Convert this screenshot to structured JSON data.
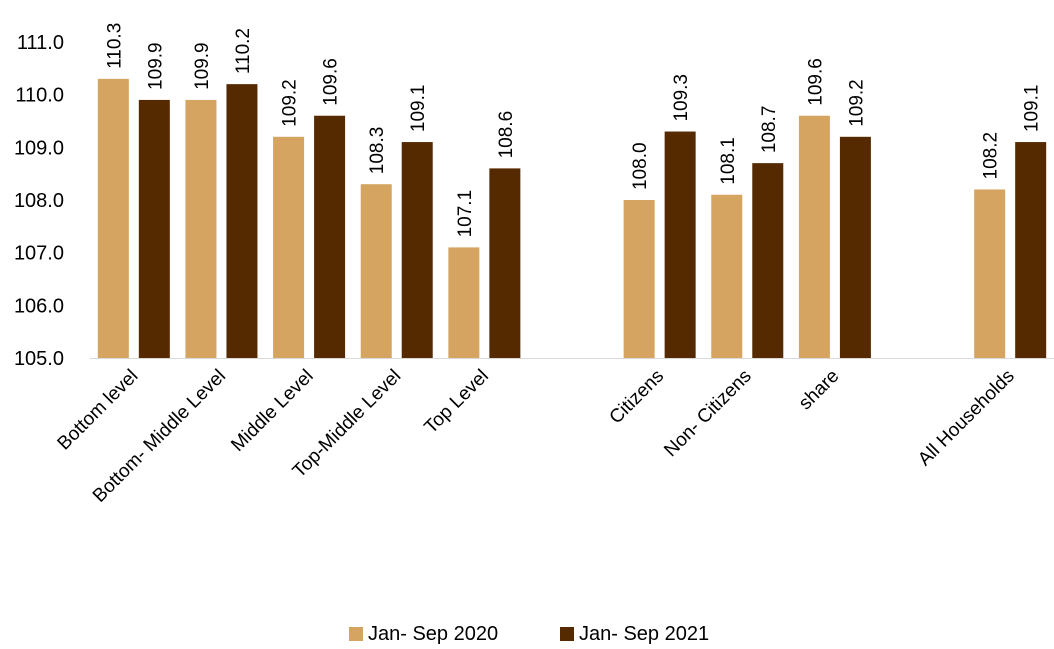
{
  "chart_data": {
    "type": "bar",
    "categories": [
      "Bottom level",
      "Bottom- Middle  Level",
      "Middle Level",
      "Top-Middle Level",
      "Top Level",
      "",
      "Citizens",
      "Non- Citizens",
      "share",
      "",
      "All Households"
    ],
    "series": [
      {
        "name": "Jan- Sep 2020",
        "color": "#D4A460",
        "values": [
          110.3,
          109.9,
          109.2,
          108.3,
          107.1,
          null,
          108.0,
          108.1,
          109.6,
          null,
          108.2
        ]
      },
      {
        "name": "Jan- Sep 2021",
        "color": "#562A00",
        "values": [
          109.9,
          110.2,
          109.6,
          109.1,
          108.6,
          null,
          109.3,
          108.7,
          109.2,
          null,
          109.1
        ]
      }
    ],
    "labels": [
      [
        "110.3",
        "109.9",
        "109.2",
        "108.3",
        "107.1",
        null,
        "108.0",
        "108.1",
        "109.6",
        null,
        "108.2"
      ],
      [
        "109.9",
        "110.2",
        "109.6",
        "109.1",
        "108.6",
        null,
        "109.3",
        "108.7",
        "109.2",
        null,
        "109.1"
      ]
    ],
    "ylim": [
      105.0,
      111.0
    ],
    "yticks": [
      "105.0",
      "106.0",
      "107.0",
      "108.0",
      "109.0",
      "110.0",
      "111.0"
    ],
    "grid": false,
    "legend": "bottom"
  }
}
